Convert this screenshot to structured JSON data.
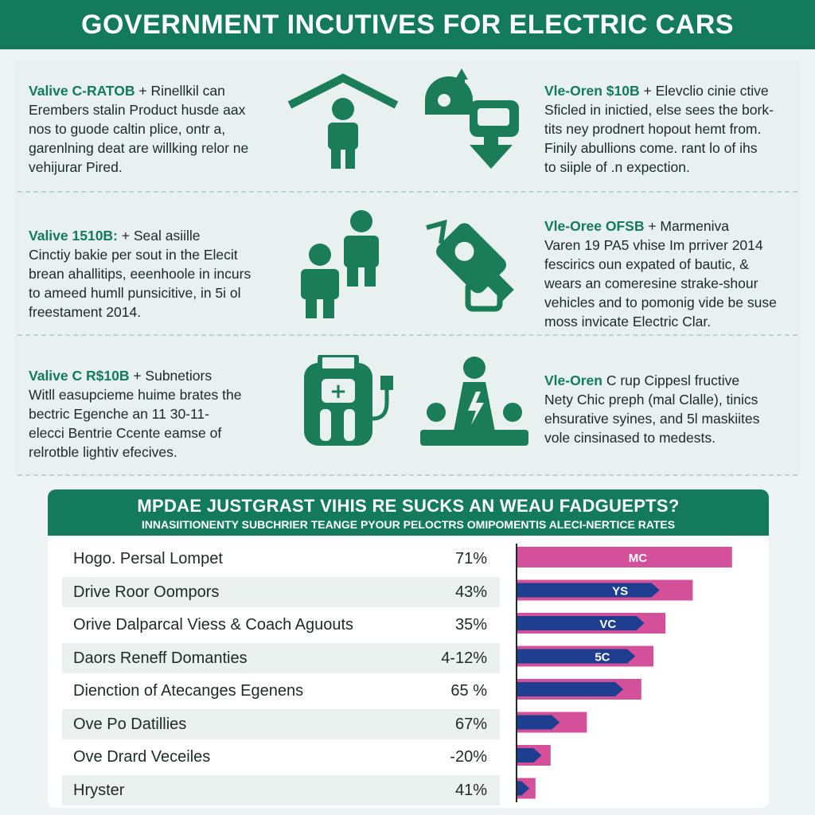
{
  "page_title": "GOVERNMENT INCUTIVES FOR ELECTRIC CARS",
  "colors": {
    "brand_green": "#137a5c",
    "pink": "#d4509a",
    "navy": "#1e3f8f"
  },
  "incentives": [
    {
      "title": "Valive C-RATOB",
      "rest": " + Rinellkil can",
      "lines": [
        "Erembers stalin Product husde aax",
        "nos to guode caltin plice, ontr a,",
        "garenlning deat are willking relor ne",
        "vehijurar Pired."
      ]
    },
    {
      "title": "Vle-Oren $10B",
      "rest": " + Elevclio cinie ctive",
      "lines": [
        "Sficled in inictied, else sees the bork-",
        "tits ney prodnert hopout hemt from.",
        "Finily abullions come. rant lo of ihs",
        "to siiple of .n expection."
      ]
    },
    {
      "title": "Valive 1510B:",
      "rest": " + Seal asiille",
      "lines": [
        "Cinctiy bakie per sout in the Elecit",
        "brean ahallitips, eeenhoole in incurs",
        "to ameed humll punsicitive, in 5i ol",
        "freestament 2014."
      ]
    },
    {
      "title": "Vle-Oree OFSB",
      "rest": " + Marmeniva",
      "lines": [
        "Varen 19 PA5 vhise Im prriver 2014",
        "fescirics oun expated of bautic, &",
        "wears an comeresine strake-shour",
        "vehicles and to pomonig vide be suse",
        "moss invicate Electric Clar."
      ]
    },
    {
      "title": "Valive C R$10B",
      "rest": " + Subnetiors",
      "lines": [
        "Witll easupcieme huime brates the",
        "bectric Egenche an 11 30-11-",
        "elecci Bentrie Ccente eamse of",
        "relrotble lightiv efecives."
      ]
    },
    {
      "title": "Vle-Oren",
      "rest": " C rup Cippesl fructive",
      "lines": [
        "Nety Chic preph (mal Clalle), tinics",
        "ehsurative syines, and 5l maskiites",
        "vole cinsinased to medests."
      ]
    }
  ],
  "table": {
    "heading": "MPDAE JUSTGRAST VIHIS RE SUCKS AN WEAU FADGUEPTS?",
    "subheading": "INNASIITIONENTY SUBCHRIER TEANGE PYOUR PELOCTRS OMIPOMENTIS ALECI-NERTICE RATES"
  },
  "chart_data": {
    "type": "bar",
    "orientation": "horizontal",
    "categories": [
      "Hogo. Persal Lompet",
      "Drive Roor Oompors",
      "Orive Dalparcal Viess & Coach Aguouts",
      "Daors Reneff Domanties",
      "Dienction of Atecanges Egenens",
      "Ove Po Datillies",
      "Ove Drard Veceiles",
      "Hryster"
    ],
    "percent_labels": [
      "71%",
      "43%",
      "35%",
      "4-12%",
      "65 %",
      "67%",
      "-20%",
      "41%"
    ],
    "series": [
      {
        "color": "#d4509a",
        "values": [
          71,
          58,
          49,
          45,
          41,
          23,
          11,
          6
        ]
      },
      {
        "color": "#1e3f8f",
        "values": [
          0,
          47,
          42,
          39,
          35,
          14,
          8,
          4
        ]
      }
    ],
    "bar_labels": [
      "MC",
      "YS",
      "VC",
      "5C",
      "",
      "",
      "",
      ""
    ],
    "xlim": [
      0,
      100
    ]
  }
}
